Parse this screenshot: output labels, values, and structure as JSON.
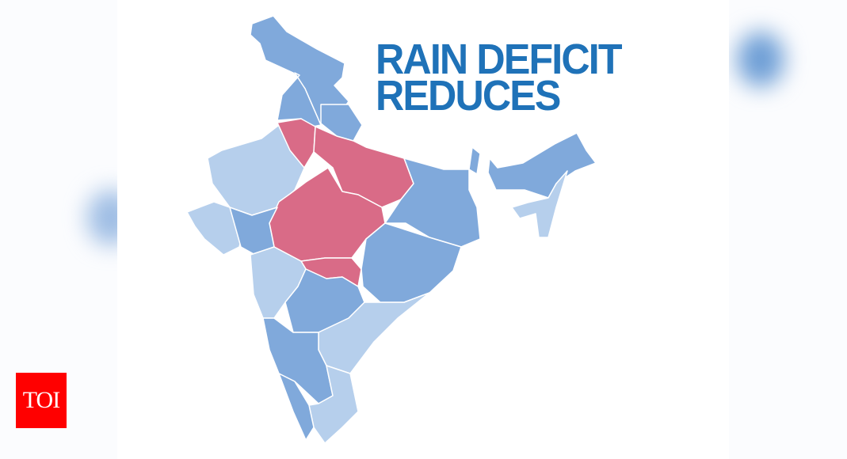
{
  "headline": {
    "line1": "RAIN DEFICIT",
    "line2": "REDUCES"
  },
  "logo": {
    "text": "TOI"
  },
  "map": {
    "subject": "India states",
    "legend_colors": {
      "deficit": "#d96b87",
      "normal": "#80a9db",
      "excess": "#b6cfec"
    },
    "highlighted_regions_color": "#d96b87"
  },
  "colors": {
    "headline": "#1f72b8",
    "logo_bg": "#ff0000",
    "border": "#ffffff"
  }
}
